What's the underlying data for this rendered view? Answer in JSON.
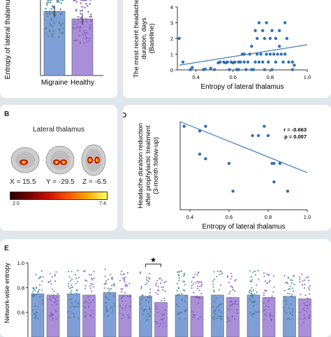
{
  "panels": {
    "b_label": "B",
    "d_label": "D",
    "e_label": "E"
  },
  "brain": {
    "title": "Lateral thalamus",
    "coords": [
      "X = 15.5",
      "Y = -29.5",
      "Z = -6.5"
    ],
    "colorbar_min": "2.0",
    "colorbar_max": "7.4"
  },
  "chart_data": [
    {
      "id": "A",
      "type": "bar",
      "categories": [
        "Migraine",
        "Healthy"
      ],
      "values": [
        0.68,
        0.6
      ],
      "ylabel": "Entropy of lateral thalamus",
      "colors": [
        "#7f9fd6",
        "#a98fd8"
      ]
    },
    {
      "id": "C",
      "type": "scatter",
      "xlabel": "Entropy of lateral thalamus",
      "ylabel": [
        "The most recent headache",
        "duration, days",
        "(Baseline)"
      ],
      "xlim": [
        0.3,
        1.0
      ],
      "ylim": [
        0,
        4
      ],
      "xticks": [
        "0.4",
        "0.6",
        "0.8",
        "1.0"
      ],
      "yticks": [
        "0",
        "1",
        "2",
        "3",
        "4"
      ],
      "points": [
        [
          0.31,
          2.0
        ],
        [
          0.33,
          0.5
        ],
        [
          0.37,
          0.02
        ],
        [
          0.38,
          0.15
        ],
        [
          0.44,
          0.02
        ],
        [
          0.45,
          0.05
        ],
        [
          0.48,
          0.1
        ],
        [
          0.5,
          0.02
        ],
        [
          0.52,
          0.45
        ],
        [
          0.53,
          0.5
        ],
        [
          0.55,
          0.5
        ],
        [
          0.56,
          0.45
        ],
        [
          0.57,
          0.5
        ],
        [
          0.58,
          0.02
        ],
        [
          0.59,
          0.5
        ],
        [
          0.6,
          0.45
        ],
        [
          0.61,
          0.5
        ],
        [
          0.62,
          0.02
        ],
        [
          0.63,
          0.5
        ],
        [
          0.64,
          0.5
        ],
        [
          0.65,
          1.0
        ],
        [
          0.66,
          0.5
        ],
        [
          0.67,
          0.02
        ],
        [
          0.68,
          0.5
        ],
        [
          0.69,
          1.0
        ],
        [
          0.7,
          1.5
        ],
        [
          0.71,
          0.02
        ],
        [
          0.72,
          0.5
        ],
        [
          0.73,
          1.0
        ],
        [
          0.73,
          2.0
        ],
        [
          0.74,
          0.5
        ],
        [
          0.74,
          3.0
        ],
        [
          0.75,
          1.0
        ],
        [
          0.76,
          0.5
        ],
        [
          0.76,
          2.5
        ],
        [
          0.77,
          0.02
        ],
        [
          0.78,
          1.0
        ],
        [
          0.78,
          3.0
        ],
        [
          0.79,
          0.5
        ],
        [
          0.8,
          1.0
        ],
        [
          0.8,
          2.0
        ],
        [
          0.81,
          0.02
        ],
        [
          0.81,
          2.5
        ],
        [
          0.82,
          1.0
        ],
        [
          0.83,
          0.5
        ],
        [
          0.83,
          2.0
        ],
        [
          0.84,
          1.0
        ],
        [
          0.85,
          2.5
        ],
        [
          0.86,
          1.0
        ],
        [
          0.87,
          0.5
        ],
        [
          0.88,
          1.0
        ],
        [
          0.89,
          2.0
        ],
        [
          0.9,
          0.5
        ],
        [
          0.92,
          0.02
        ],
        [
          0.93,
          0.3
        ],
        [
          0.63,
          0.02
        ],
        [
          0.66,
          1.0
        ],
        [
          0.7,
          0.02
        ],
        [
          0.72,
          2.5
        ],
        [
          0.77,
          2.0
        ],
        [
          0.85,
          1.5
        ],
        [
          0.88,
          3.0
        ],
        [
          0.92,
          0.5
        ]
      ],
      "trend": [
        [
          0.31,
          0.3
        ],
        [
          1.0,
          1.6
        ]
      ]
    },
    {
      "id": "D",
      "type": "scatter",
      "xlabel": "Entropy of lateral thalamus",
      "ylabel": [
        "Headache duration reduction",
        "after prophylactic treatment",
        "(3-month follow-up)"
      ],
      "annotation_r": "r = -0.663",
      "annotation_p": "p = 0.007",
      "xlim": [
        0.35,
        1.0
      ],
      "ylim": [
        0.0,
        0.95
      ],
      "xticks": [
        "0.4",
        "0.6",
        "0.8",
        "1.0"
      ],
      "points": [
        [
          0.37,
          0.9
        ],
        [
          0.45,
          0.85
        ],
        [
          0.48,
          0.9
        ],
        [
          0.45,
          0.6
        ],
        [
          0.48,
          0.55
        ],
        [
          0.6,
          0.5
        ],
        [
          0.72,
          0.8
        ],
        [
          0.75,
          0.8
        ],
        [
          0.78,
          0.9
        ],
        [
          0.8,
          0.8
        ],
        [
          0.82,
          0.5
        ],
        [
          0.83,
          0.5
        ],
        [
          0.86,
          0.5
        ],
        [
          0.83,
          0.3
        ],
        [
          0.9,
          0.2
        ],
        [
          0.62,
          0.2
        ]
      ],
      "trend": [
        [
          0.35,
          0.95
        ],
        [
          1.0,
          0.4
        ]
      ]
    },
    {
      "id": "E",
      "type": "bar",
      "ylabel": "Network-wise entropy",
      "ylim": [
        0.4,
        1.0
      ],
      "yticks": [
        "0.6",
        "0.8",
        "1.0"
      ],
      "significance": "★",
      "significant_pair": 3,
      "series": [
        {
          "values": [
            0.75,
            0.75,
            0.76,
            0.73,
            0.74,
            0.74,
            0.74,
            0.73
          ]
        },
        {
          "values": [
            0.74,
            0.74,
            0.74,
            0.68,
            0.73,
            0.72,
            0.72,
            0.71
          ]
        }
      ],
      "colors": [
        "#7f9fd6",
        "#a98fd8"
      ]
    }
  ]
}
